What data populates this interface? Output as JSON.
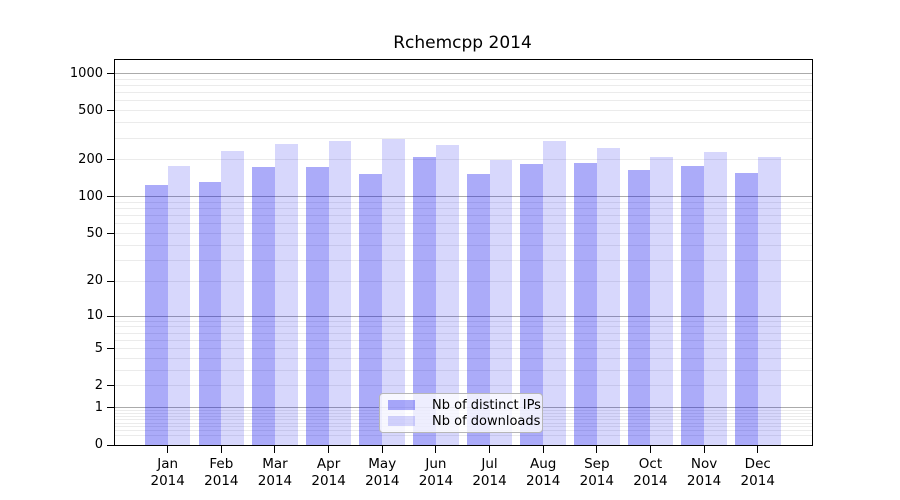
{
  "title": "Rchemcpp 2014",
  "legend": {
    "position": "bottom-center",
    "items": [
      {
        "label": "Nb of distinct IPs",
        "color": "rgba(0,0,238,0.33)"
      },
      {
        "label": "Nb of downloads",
        "color": "rgba(0,0,238,0.155)"
      }
    ]
  },
  "axes": {
    "y_ticks": [
      0,
      1,
      2,
      5,
      10,
      20,
      50,
      100,
      200,
      500,
      1000
    ],
    "y_major_gridlines": [
      1,
      10,
      100,
      1000
    ],
    "x_tick_year": "2014"
  },
  "colors": {
    "bar_ips": "rgba(0,0,238,0.33)",
    "bar_downloads": "rgba(0,0,238,0.155)",
    "grid_major": "#ababab",
    "grid_minor": "#ebebeb",
    "axis": "#000000",
    "background": "#ffffff"
  },
  "chart_data": {
    "type": "bar",
    "title": "Rchemcpp 2014",
    "xlabel": "",
    "ylabel": "",
    "yscale": "log1p",
    "ylim": [
      0,
      1290
    ],
    "grid": true,
    "legend_position": "lower center",
    "categories": [
      "Jan 2014",
      "Feb 2014",
      "Mar 2014",
      "Apr 2014",
      "May 2014",
      "Jun 2014",
      "Jul 2014",
      "Aug 2014",
      "Sep 2014",
      "Oct 2014",
      "Nov 2014",
      "Dec 2014"
    ],
    "y_ticks": [
      0,
      1,
      2,
      5,
      10,
      20,
      50,
      100,
      200,
      500,
      1000
    ],
    "series": [
      {
        "name": "Nb of distinct IPs",
        "values": [
          124,
          133,
          175,
          175,
          154,
          210,
          154,
          186,
          190,
          164,
          177,
          157
        ]
      },
      {
        "name": "Nb of downloads",
        "values": [
          180,
          238,
          268,
          282,
          293,
          266,
          200,
          283,
          249,
          210,
          233,
          210
        ]
      }
    ]
  }
}
